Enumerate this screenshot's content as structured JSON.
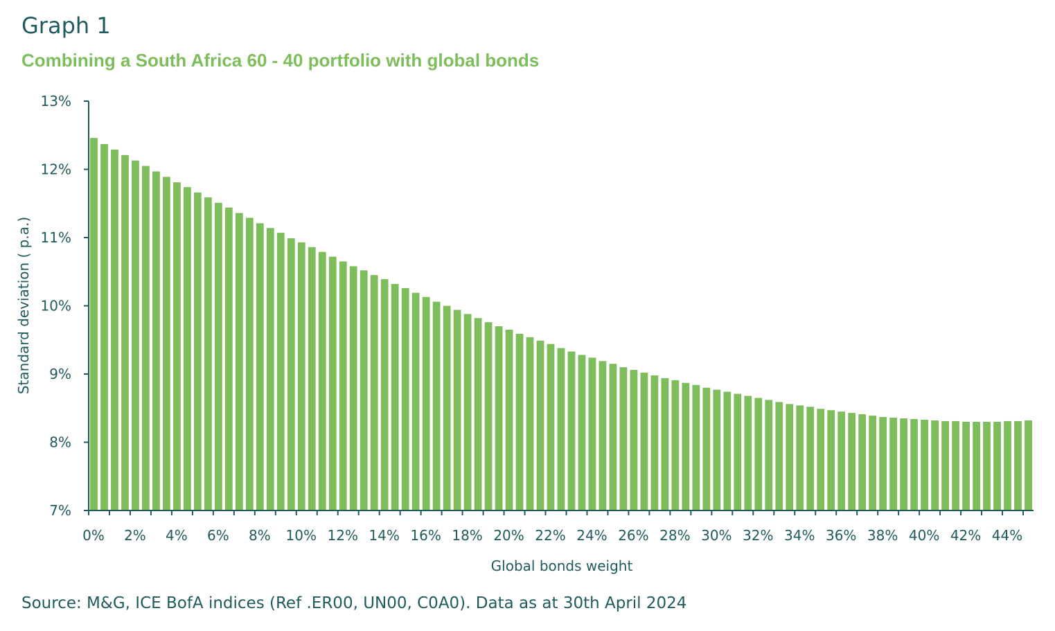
{
  "heading": "Graph 1",
  "source": "Source: M&G, ICE BofA indices (Ref .ER00, UN00, C0A0). Data as at 30th April 2024",
  "colors": {
    "bar": "#7dbd5c",
    "axis": "#1f5a5c",
    "title": "#1f5a5c",
    "subtitle": "#7dbd5c"
  },
  "chart_data": {
    "type": "bar",
    "title": "Combining a South Africa 60 - 40 portfolio with global bonds",
    "xlabel": "Global bonds weight",
    "ylabel": "Standard deviation ( p.a.)",
    "ylim": [
      7,
      13
    ],
    "yticks": [
      "7%",
      "8%",
      "9%",
      "10%",
      "11%",
      "12%",
      "13%"
    ],
    "xtick_labels": [
      "0%",
      "2%",
      "4%",
      "6%",
      "8%",
      "10%",
      "12%",
      "14%",
      "16%",
      "18%",
      "20%",
      "22%",
      "24%",
      "26%",
      "28%",
      "30%",
      "32%",
      "34%",
      "36%",
      "38%",
      "40%",
      "42%",
      "44%"
    ],
    "grid": false,
    "legend": "none",
    "categories": [
      "0.0%",
      "0.5%",
      "1.0%",
      "1.5%",
      "2.0%",
      "2.5%",
      "3.0%",
      "3.5%",
      "4.0%",
      "4.5%",
      "5.0%",
      "5.5%",
      "6.0%",
      "6.5%",
      "7.0%",
      "7.5%",
      "8.0%",
      "8.5%",
      "9.0%",
      "9.5%",
      "10.0%",
      "10.5%",
      "11.0%",
      "11.5%",
      "12.0%",
      "12.5%",
      "13.0%",
      "13.5%",
      "14.0%",
      "14.5%",
      "15.0%",
      "15.5%",
      "16.0%",
      "16.5%",
      "17.0%",
      "17.5%",
      "18.0%",
      "18.5%",
      "19.0%",
      "19.5%",
      "20.0%",
      "20.5%",
      "21.0%",
      "21.5%",
      "22.0%",
      "22.5%",
      "23.0%",
      "23.5%",
      "24.0%",
      "24.5%",
      "25.0%",
      "25.5%",
      "26.0%",
      "26.5%",
      "27.0%",
      "27.5%",
      "28.0%",
      "28.5%",
      "29.0%",
      "29.5%",
      "30.0%",
      "30.5%",
      "31.0%",
      "31.5%",
      "32.0%",
      "32.5%",
      "33.0%",
      "33.5%",
      "34.0%",
      "34.5%",
      "35.0%",
      "35.5%",
      "36.0%",
      "36.5%",
      "37.0%",
      "37.5%",
      "38.0%",
      "38.5%",
      "39.0%",
      "39.5%",
      "40.0%",
      "40.5%",
      "41.0%",
      "41.5%",
      "42.0%",
      "42.5%",
      "43.0%",
      "43.5%",
      "44.0%",
      "44.5%",
      "45.0%"
    ],
    "values": [
      12.46,
      12.37,
      12.29,
      12.21,
      12.13,
      12.05,
      11.97,
      11.89,
      11.81,
      11.74,
      11.66,
      11.59,
      11.51,
      11.44,
      11.36,
      11.29,
      11.21,
      11.14,
      11.07,
      10.99,
      10.93,
      10.86,
      10.79,
      10.72,
      10.65,
      10.58,
      10.52,
      10.45,
      10.39,
      10.32,
      10.26,
      10.19,
      10.13,
      10.06,
      10.0,
      9.94,
      9.88,
      9.82,
      9.76,
      9.7,
      9.65,
      9.59,
      9.54,
      9.49,
      9.44,
      9.38,
      9.33,
      9.28,
      9.24,
      9.19,
      9.15,
      9.1,
      9.06,
      9.02,
      8.98,
      8.94,
      8.91,
      8.87,
      8.84,
      8.8,
      8.77,
      8.74,
      8.71,
      8.68,
      8.65,
      8.62,
      8.59,
      8.56,
      8.54,
      8.52,
      8.49,
      8.47,
      8.45,
      8.43,
      8.41,
      8.39,
      8.37,
      8.36,
      8.35,
      8.34,
      8.33,
      8.32,
      8.31,
      8.31,
      8.3,
      8.3,
      8.3,
      8.3,
      8.31,
      8.31,
      8.32
    ]
  }
}
